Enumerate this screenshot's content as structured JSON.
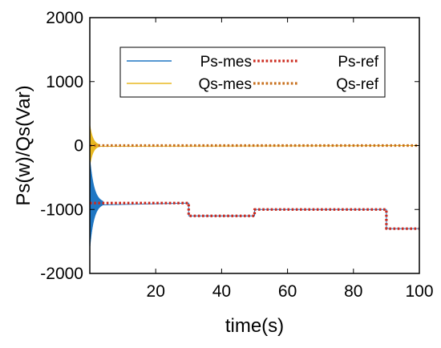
{
  "chart_data": {
    "type": "line",
    "xlabel": "time(s)",
    "ylabel": "Ps(w)/Qs(Var)",
    "xlim": [
      0,
      100
    ],
    "ylim": [
      -2000,
      2000
    ],
    "x_ticks": [
      "20",
      "40",
      "60",
      "80",
      "100"
    ],
    "y_ticks": [
      "2000",
      "1000",
      "0",
      "-1000",
      "-2000"
    ],
    "grid": false,
    "legend_position": "top-right",
    "series": [
      {
        "name": "Ps-mes",
        "color": "#1f77c4",
        "style": "solid",
        "x": [
          0,
          30,
          30,
          50,
          50,
          90,
          90,
          100
        ],
        "y": [
          -900,
          -900,
          -1100,
          -1100,
          -1000,
          -1000,
          -1300,
          -1300
        ],
        "initial_transient": {
          "x_start": 0,
          "x_end": 4,
          "peak_amplitude": 700
        }
      },
      {
        "name": "Ps-ref",
        "color": "#cc2a1e",
        "style": "dotted",
        "x": [
          0,
          30,
          30,
          50,
          50,
          90,
          90,
          100
        ],
        "y": [
          -900,
          -900,
          -1100,
          -1100,
          -1000,
          -1000,
          -1300,
          -1300
        ]
      },
      {
        "name": "Qs-mes",
        "color": "#e8b820",
        "style": "solid",
        "x": [
          0,
          100
        ],
        "y": [
          0,
          0
        ],
        "initial_transient": {
          "x_start": 0,
          "x_end": 3,
          "peak_amplitude": 320
        }
      },
      {
        "name": "Qs-ref",
        "color": "#c8701e",
        "style": "dotted",
        "x": [
          0,
          100
        ],
        "y": [
          0,
          0
        ]
      }
    ]
  }
}
